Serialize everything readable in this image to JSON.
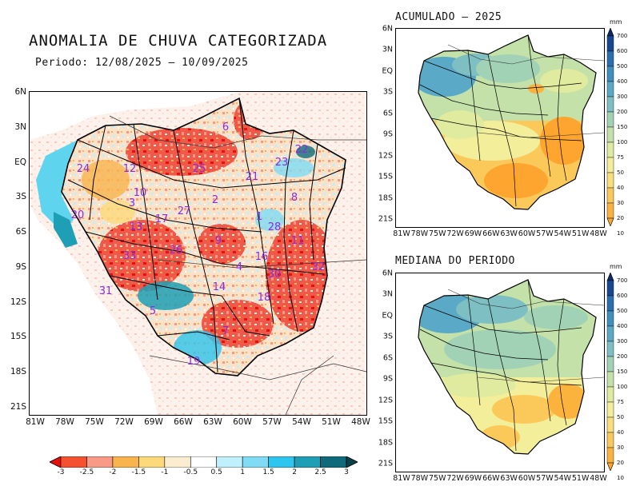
{
  "main": {
    "title": "ANOMALIA DE CHUVA CATEGORIZADA",
    "period": "Periodo: 12/08/2025 – 10/09/2025",
    "lat_ticks": [
      "6N",
      "3N",
      "EQ",
      "3S",
      "6S",
      "9S",
      "12S",
      "15S",
      "18S",
      "21S"
    ],
    "lon_ticks": [
      "81W",
      "78W",
      "75W",
      "72W",
      "69W",
      "66W",
      "63W",
      "60W",
      "57W",
      "54W",
      "51W",
      "48W"
    ],
    "colorbar": {
      "labels": [
        "-3",
        "-2.5",
        "-2",
        "-1.5",
        "-1",
        "-0.5",
        "0.5",
        "1",
        "1.5",
        "2",
        "2.5",
        "3"
      ],
      "colors": [
        "#e8100a",
        "#f55030",
        "#f89a86",
        "#f9b44d",
        "#fcd97a",
        "#fbeed0",
        "#ffffff",
        "#bff0fb",
        "#7fdcf4",
        "#2ec6ee",
        "#1f9fb5",
        "#0f6a7a",
        "#0a4048"
      ]
    },
    "basins": [
      {
        "id": "24"
      },
      {
        "id": "12"
      },
      {
        "id": "25"
      },
      {
        "id": "6"
      },
      {
        "id": "23"
      },
      {
        "id": "22"
      },
      {
        "id": "21"
      },
      {
        "id": "10"
      },
      {
        "id": "3"
      },
      {
        "id": "20"
      },
      {
        "id": "17"
      },
      {
        "id": "27"
      },
      {
        "id": "2"
      },
      {
        "id": "8"
      },
      {
        "id": "13"
      },
      {
        "id": "1"
      },
      {
        "id": "28"
      },
      {
        "id": "9"
      },
      {
        "id": "11"
      },
      {
        "id": "33"
      },
      {
        "id": "26"
      },
      {
        "id": "16"
      },
      {
        "id": "4"
      },
      {
        "id": "30"
      },
      {
        "id": "32"
      },
      {
        "id": "31"
      },
      {
        "id": "14"
      },
      {
        "id": "18"
      },
      {
        "id": "5"
      },
      {
        "id": "7"
      },
      {
        "id": "19"
      }
    ]
  },
  "acumulado": {
    "title": "ACUMULADO – 2025",
    "lat_ticks": [
      "6N",
      "3N",
      "EQ",
      "3S",
      "6S",
      "9S",
      "12S",
      "15S",
      "18S",
      "21S"
    ],
    "lon_ticks": [
      "81W",
      "78W",
      "75W",
      "72W",
      "69W",
      "66W",
      "63W",
      "60W",
      "57W",
      "54W",
      "51W",
      "48W"
    ]
  },
  "mediana": {
    "title": "MEDIANA DO PERIODO",
    "lat_ticks": [
      "6N",
      "3N",
      "EQ",
      "3S",
      "6S",
      "9S",
      "12S",
      "15S",
      "18S",
      "21S"
    ],
    "lon_ticks": [
      "81W",
      "78W",
      "75W",
      "72W",
      "69W",
      "66W",
      "63W",
      "60W",
      "57W",
      "54W",
      "51W",
      "48W"
    ]
  },
  "mm_colorbar": {
    "unit": "mm",
    "labels": [
      "700",
      "600",
      "500",
      "400",
      "300",
      "200",
      "150",
      "100",
      "75",
      "50",
      "40",
      "30",
      "20",
      "10"
    ],
    "colors": [
      "#0c2a66",
      "#17488f",
      "#2a6fae",
      "#3f8fbf",
      "#5aa9c6",
      "#7dbfc2",
      "#a2d2b6",
      "#c3e1a8",
      "#e0eba0",
      "#f3ee9a",
      "#f8df7a",
      "#fac95a",
      "#fcb33e",
      "#fda52e"
    ]
  }
}
